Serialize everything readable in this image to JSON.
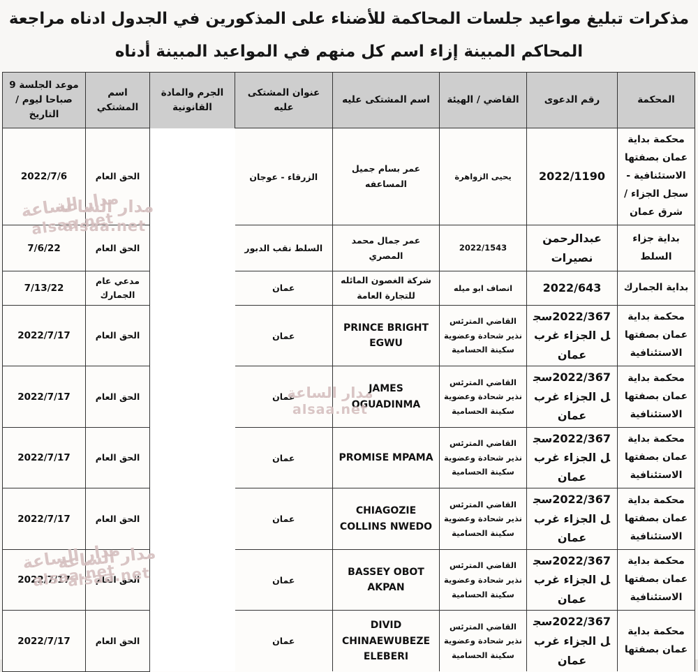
{
  "title": {
    "line1": "مذكرات تبليغ مواعيد جلسات المحاكمة للأضناء على المذكورين في الجدول ادناه مراجعة",
    "line2": "المحاكم المبينة إزاء اسم كل منهم في المواعيد المبينة أدناه"
  },
  "watermark": {
    "line1": "مدار الساعة",
    "line2": "alsaa.net"
  },
  "colors": {
    "header_bg": "#cecece",
    "border": "#343434",
    "watermark": "#ba9595",
    "page_bg": "#f8f7f5"
  },
  "table": {
    "headers": {
      "court": "المحكمة",
      "case_no": "رقم الدعوى",
      "judge": "القاضي / الهيئة",
      "defendant_name": "اسم المشتكى عليه",
      "defendant_address": "عنوان المشتكى عليه",
      "crime": "الجرم والمادة القانونية",
      "complainant": "اسم المشتكي",
      "session_date": "موعد الجلسة 9 صباحا ليوم / التاريخ"
    },
    "rows": [
      {
        "court": "محكمة بداية عمان بصفتها الاستئنافية - سجل الجزاء /شرق عمان",
        "case_no": "2022/1190",
        "judge": "يحيى الزواهرة",
        "defendant_name": "عمر بسام جميل المساعفه",
        "defendant_address": "الزرقاء - عوجان",
        "crime": "",
        "complainant": "الحق العام",
        "session_date": "2022/7/6"
      },
      {
        "court": "بداية جزاء السلط",
        "case_no": "عبدالرحمن نصيرات",
        "judge": "2022/1543",
        "defendant_name": "عمر جمال محمد المصري",
        "defendant_address": "السلط نقب الدبور",
        "crime": "",
        "complainant": "الحق العام",
        "session_date": "7/6/22"
      },
      {
        "court": "بداية الجمارك",
        "case_no": "2022/643",
        "judge": "انصاف ابو ميله",
        "defendant_name": "شركة الغصون المائله للتجارة العامة",
        "defendant_address": "عمان",
        "crime": "",
        "complainant": "مدعي عام الجمارك",
        "session_date": "7/13/22"
      },
      {
        "court": "محكمة بداية عمان بصفتها الاستئنافية",
        "case_no": "2022/367سجل الجزاء غرب عمان",
        "judge": "القاضي المترئس نذير شحادة وعضوية سكينة الحسامية",
        "defendant_name": "PRINCE BRIGHT EGWU",
        "defendant_address": "عمان",
        "crime": "",
        "complainant": "الحق العام",
        "session_date": "2022/7/17"
      },
      {
        "court": "محكمة بداية عمان بصفتها الاستئنافية",
        "case_no": "2022/367سجل الجزاء غرب عمان",
        "judge": "القاضي المترئس نذير شحادة وعضوية سكينة الحسامية",
        "defendant_name": "JAMES OGUADINMA",
        "defendant_address": "عمان",
        "crime": "",
        "complainant": "الحق العام",
        "session_date": "2022/7/17"
      },
      {
        "court": "محكمة بداية عمان بصفتها الاستئنافية",
        "case_no": "2022/367سجل الجزاء غرب عمان",
        "judge": "القاضي المترئس نذير شحادة وعضوية سكينة الحسامية",
        "defendant_name": "PROMISE MPAMA",
        "defendant_address": "عمان",
        "crime": "",
        "complainant": "الحق العام",
        "session_date": "2022/7/17"
      },
      {
        "court": "محكمة بداية عمان بصفتها الاستئنافية",
        "case_no": "2022/367سجل الجزاء غرب عمان",
        "judge": "القاضي المترئس نذير شحادة وعضوية سكينة الحسامية",
        "defendant_name": "CHIAGOZIE COLLINS NWEDO",
        "defendant_address": "عمان",
        "crime": "",
        "complainant": "الحق العام",
        "session_date": "2022/7/17"
      },
      {
        "court": "محكمة بداية عمان بصفتها الاستئنافية",
        "case_no": "2022/367سجل الجزاء غرب عمان",
        "judge": "القاضي المترئس نذير شحادة وعضوية سكينة الحسامية",
        "defendant_name": "BASSEY OBOT AKPAN",
        "defendant_address": "عمان",
        "crime": "",
        "complainant": "الحق العام",
        "session_date": "2022/7/17"
      },
      {
        "court": "محكمة بداية عمان بصفتها",
        "case_no": "2022/367سجل الجزاء غرب عمان",
        "judge": "القاضي المترئس نذير شحادة وعضوية سكينة الحسامية",
        "defendant_name": "DIVID CHINAEWUBEZE ELEBERI",
        "defendant_address": "عمان",
        "crime": "",
        "complainant": "الحق العام",
        "session_date": "2022/7/17"
      }
    ]
  }
}
